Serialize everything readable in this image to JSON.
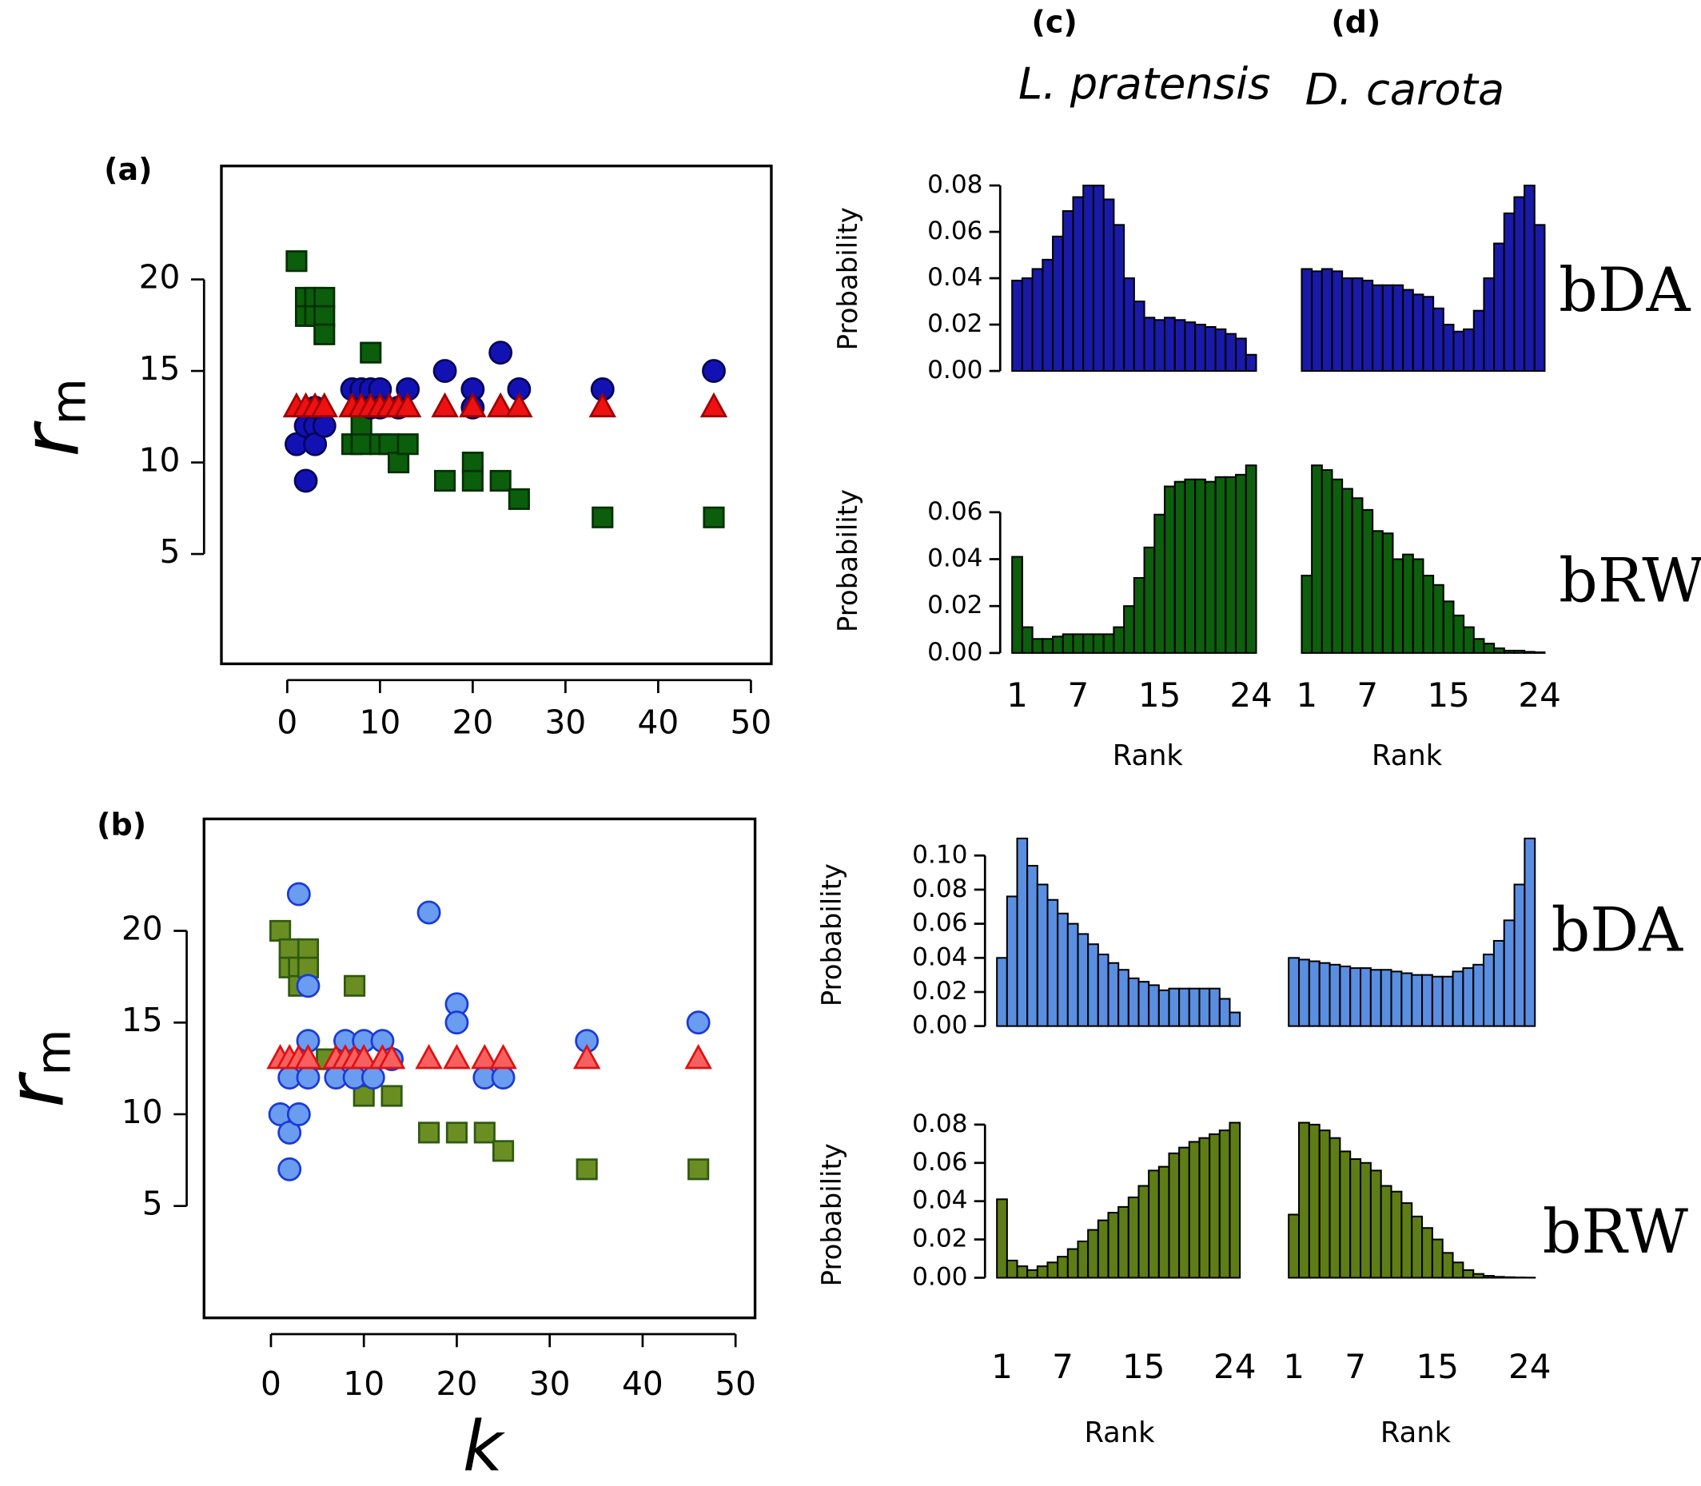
{
  "chart_data": [
    {
      "type": "scatter",
      "title": "(a)",
      "ylabel": "r",
      "ylabel_subscript": "m",
      "xlim": [
        -7.1,
        52.2
      ],
      "ylim": [
        -1,
        26.2
      ],
      "xticks": [
        0,
        10,
        20,
        30,
        40,
        50
      ],
      "yticks": [
        5,
        10,
        15,
        20
      ],
      "series": [
        {
          "marker": "square",
          "color": "#0b5e0b",
          "edge": "#033003",
          "x": [
            1,
            2,
            2,
            3,
            3,
            4,
            4,
            4,
            7,
            8,
            8,
            9,
            10,
            11,
            12,
            13,
            17,
            20,
            20,
            23,
            25,
            34,
            46
          ],
          "values": [
            21,
            19,
            18,
            19,
            18,
            19,
            18,
            17,
            11,
            12,
            11,
            16,
            11,
            11,
            10,
            11,
            9,
            10,
            9,
            9,
            8,
            7,
            7
          ]
        },
        {
          "marker": "circle",
          "color": "#1212b4",
          "edge": "#05055a",
          "x": [
            1,
            2,
            2,
            3,
            3,
            4,
            3,
            7,
            8,
            9,
            9,
            10,
            10,
            12,
            13,
            17,
            20,
            20,
            23,
            25,
            34,
            46
          ],
          "values": [
            11,
            12,
            9,
            12,
            11,
            12,
            13,
            14,
            14,
            14,
            13,
            14,
            13,
            13,
            14,
            15,
            14,
            13,
            16,
            14,
            14,
            15
          ]
        },
        {
          "marker": "triangle",
          "color": "#ee1111",
          "edge": "#a00000",
          "x": [
            1,
            2,
            3,
            4,
            7,
            8,
            9,
            10,
            11,
            12,
            13,
            17,
            20,
            23,
            25,
            34,
            46
          ],
          "values": [
            13,
            13,
            13,
            13,
            13,
            13,
            13,
            13,
            13,
            13,
            13,
            13,
            13,
            13,
            13,
            13,
            13
          ]
        }
      ]
    },
    {
      "type": "scatter",
      "title": "(b)",
      "ylabel": "r",
      "ylabel_subscript": "m",
      "xlabel": "k",
      "xlim": [
        -7.2,
        52.1
      ],
      "ylim": [
        -1.1,
        26.1
      ],
      "xticks": [
        0,
        10,
        20,
        30,
        40,
        50
      ],
      "yticks": [
        5,
        10,
        15,
        20
      ],
      "series": [
        {
          "marker": "square",
          "color": "#6b8e23",
          "edge": "#2f5a10",
          "x": [
            1,
            2,
            2,
            3,
            3,
            4,
            4,
            6,
            9,
            10,
            13,
            17,
            20,
            23,
            25,
            34,
            46
          ],
          "values": [
            20,
            19,
            18,
            18,
            17,
            19,
            18,
            13,
            17,
            11,
            11,
            9,
            9,
            9,
            8,
            7,
            7
          ]
        },
        {
          "marker": "circle",
          "color": "#6a9cf0",
          "edge": "#1a3ad8",
          "x": [
            1,
            2,
            2,
            3,
            3,
            4,
            4,
            2,
            4,
            7,
            8,
            9,
            10,
            11,
            12,
            13,
            17,
            20,
            20,
            23,
            25,
            34,
            46
          ],
          "values": [
            10,
            9,
            7,
            10,
            22,
            17,
            14,
            12,
            12,
            12,
            14,
            12,
            14,
            12,
            14,
            13,
            21,
            16,
            15,
            12,
            12,
            14,
            15
          ]
        },
        {
          "marker": "triangle",
          "color": "#f86060",
          "edge": "#e01010",
          "x": [
            1,
            2,
            3,
            4,
            7,
            8,
            9,
            10,
            12,
            13,
            17,
            20,
            23,
            25,
            34,
            46
          ],
          "values": [
            13,
            13,
            13,
            13,
            13,
            13,
            13,
            13,
            13,
            13,
            13,
            13,
            13,
            13,
            13,
            13
          ]
        }
      ]
    },
    {
      "type": "bar",
      "title": "(c)",
      "subtitle": "L. pratensis",
      "ylabel": "Probability",
      "color": "#1a1aa8",
      "xlim": [
        0.5,
        24.5
      ],
      "ylim": [
        0,
        0.08
      ],
      "yticks": [
        {
          "value": 0,
          "label": "0.00"
        },
        {
          "value": 0.02,
          "label": "0.02"
        },
        {
          "value": 0.04,
          "label": "0.04"
        },
        {
          "value": 0.06,
          "label": "0.06"
        },
        {
          "value": 0.08,
          "label": "0.08"
        }
      ],
      "x": [
        1,
        2,
        3,
        4,
        5,
        6,
        7,
        8,
        9,
        10,
        11,
        12,
        13,
        14,
        15,
        16,
        17,
        18,
        19,
        20,
        21,
        22,
        23,
        24
      ],
      "values": [
        0.039,
        0.04,
        0.044,
        0.048,
        0.058,
        0.069,
        0.075,
        0.08,
        0.08,
        0.074,
        0.063,
        0.04,
        0.03,
        0.023,
        0.022,
        0.023,
        0.022,
        0.021,
        0.02,
        0.019,
        0.018,
        0.016,
        0.014,
        0.007
      ]
    },
    {
      "type": "bar",
      "title": "(d)",
      "subtitle": "D. carota",
      "side_label": "bDA",
      "color": "#1a1aa8",
      "xlim": [
        0.5,
        24.5
      ],
      "ylim": [
        0,
        0.08
      ],
      "x": [
        1,
        2,
        3,
        4,
        5,
        6,
        7,
        8,
        9,
        10,
        11,
        12,
        13,
        14,
        15,
        16,
        17,
        18,
        19,
        20,
        21,
        22,
        23,
        24
      ],
      "values": [
        0.044,
        0.043,
        0.044,
        0.043,
        0.04,
        0.04,
        0.039,
        0.037,
        0.037,
        0.037,
        0.035,
        0.033,
        0.032,
        0.027,
        0.02,
        0.017,
        0.018,
        0.026,
        0.04,
        0.055,
        0.068,
        0.075,
        0.08,
        0.063
      ]
    },
    {
      "type": "bar",
      "ylabel": "Probability",
      "xlabel": "Rank",
      "color": "#0d5e0d",
      "xlim": [
        0.5,
        24.5
      ],
      "ylim": [
        0,
        0.08
      ],
      "xticks": [
        1,
        7,
        15,
        24
      ],
      "yticks": [
        {
          "value": 0,
          "label": "0.00"
        },
        {
          "value": 0.02,
          "label": "0.02"
        },
        {
          "value": 0.04,
          "label": "0.04"
        },
        {
          "value": 0.06,
          "label": "0.06"
        }
      ],
      "x": [
        1,
        2,
        3,
        4,
        5,
        6,
        7,
        8,
        9,
        10,
        11,
        12,
        13,
        14,
        15,
        16,
        17,
        18,
        19,
        20,
        21,
        22,
        23,
        24
      ],
      "values": [
        0.041,
        0.011,
        0.006,
        0.006,
        0.007,
        0.008,
        0.008,
        0.008,
        0.008,
        0.008,
        0.011,
        0.02,
        0.032,
        0.045,
        0.059,
        0.071,
        0.073,
        0.074,
        0.074,
        0.073,
        0.075,
        0.075,
        0.076,
        0.08
      ]
    },
    {
      "type": "bar",
      "xlabel": "Rank",
      "side_label": "bRW",
      "color": "#0d5e0d",
      "xlim": [
        0.5,
        24.5
      ],
      "ylim": [
        0,
        0.08
      ],
      "xticks": [
        1,
        7,
        15,
        24
      ],
      "x": [
        1,
        2,
        3,
        4,
        5,
        6,
        7,
        8,
        9,
        10,
        11,
        12,
        13,
        14,
        15,
        16,
        17,
        18,
        19,
        20,
        21,
        22,
        23,
        24
      ],
      "values": [
        0.033,
        0.08,
        0.078,
        0.074,
        0.07,
        0.066,
        0.061,
        0.052,
        0.051,
        0.04,
        0.042,
        0.04,
        0.033,
        0.029,
        0.022,
        0.016,
        0.011,
        0.006,
        0.004,
        0.002,
        0.001,
        0.001,
        0.0005,
        0.0003
      ]
    },
    {
      "type": "bar",
      "ylabel": "Probability",
      "color": "#5a8ee0",
      "xlim": [
        0.5,
        24.5
      ],
      "ylim": [
        0,
        0.11
      ],
      "yticks": [
        {
          "value": 0,
          "label": "0.00"
        },
        {
          "value": 0.02,
          "label": "0.02"
        },
        {
          "value": 0.04,
          "label": "0.04"
        },
        {
          "value": 0.06,
          "label": "0.06"
        },
        {
          "value": 0.08,
          "label": "0.08"
        },
        {
          "value": 0.1,
          "label": "0.10"
        }
      ],
      "x": [
        1,
        2,
        3,
        4,
        5,
        6,
        7,
        8,
        9,
        10,
        11,
        12,
        13,
        14,
        15,
        16,
        17,
        18,
        19,
        20,
        21,
        22,
        23,
        24
      ],
      "values": [
        0.04,
        0.076,
        0.11,
        0.094,
        0.083,
        0.074,
        0.066,
        0.06,
        0.054,
        0.048,
        0.042,
        0.037,
        0.033,
        0.028,
        0.026,
        0.024,
        0.021,
        0.022,
        0.022,
        0.022,
        0.022,
        0.022,
        0.016,
        0.008
      ]
    },
    {
      "type": "bar",
      "side_label": "bDA",
      "color": "#5a8ee0",
      "xlim": [
        0.5,
        24.5
      ],
      "ylim": [
        0,
        0.11
      ],
      "x": [
        1,
        2,
        3,
        4,
        5,
        6,
        7,
        8,
        9,
        10,
        11,
        12,
        13,
        14,
        15,
        16,
        17,
        18,
        19,
        20,
        21,
        22,
        23,
        24
      ],
      "values": [
        0.04,
        0.039,
        0.038,
        0.037,
        0.036,
        0.035,
        0.034,
        0.034,
        0.033,
        0.033,
        0.032,
        0.031,
        0.03,
        0.03,
        0.029,
        0.029,
        0.032,
        0.034,
        0.036,
        0.042,
        0.05,
        0.062,
        0.083,
        0.11
      ]
    },
    {
      "type": "bar",
      "ylabel": "Probability",
      "xlabel": "Rank",
      "color": "#5e7d16",
      "xlim": [
        0.5,
        24.5
      ],
      "ylim": [
        0,
        0.085
      ],
      "xticks": [
        1,
        7,
        15,
        24
      ],
      "yticks": [
        {
          "value": 0,
          "label": "0.00"
        },
        {
          "value": 0.02,
          "label": "0.02"
        },
        {
          "value": 0.04,
          "label": "0.04"
        },
        {
          "value": 0.06,
          "label": "0.06"
        },
        {
          "value": 0.08,
          "label": "0.08"
        }
      ],
      "x": [
        1,
        2,
        3,
        4,
        5,
        6,
        7,
        8,
        9,
        10,
        11,
        12,
        13,
        14,
        15,
        16,
        17,
        18,
        19,
        20,
        21,
        22,
        23,
        24
      ],
      "values": [
        0.041,
        0.009,
        0.006,
        0.004,
        0.006,
        0.008,
        0.011,
        0.015,
        0.019,
        0.025,
        0.03,
        0.034,
        0.037,
        0.042,
        0.048,
        0.056,
        0.058,
        0.065,
        0.068,
        0.071,
        0.073,
        0.075,
        0.077,
        0.081
      ]
    },
    {
      "type": "bar",
      "xlabel": "Rank",
      "side_label": "bRW",
      "color": "#5e7d16",
      "xlim": [
        0.5,
        24.5
      ],
      "ylim": [
        0,
        0.085
      ],
      "xticks": [
        1,
        7,
        15,
        24
      ],
      "x": [
        1,
        2,
        3,
        4,
        5,
        6,
        7,
        8,
        9,
        10,
        11,
        12,
        13,
        14,
        15,
        16,
        17,
        18,
        19,
        20,
        21,
        22,
        23,
        24
      ],
      "values": [
        0.033,
        0.081,
        0.08,
        0.077,
        0.073,
        0.066,
        0.062,
        0.06,
        0.056,
        0.048,
        0.045,
        0.039,
        0.032,
        0.026,
        0.02,
        0.013,
        0.008,
        0.004,
        0.002,
        0.001,
        0.0005,
        0.0003,
        0.0002,
        0.0001
      ]
    }
  ]
}
